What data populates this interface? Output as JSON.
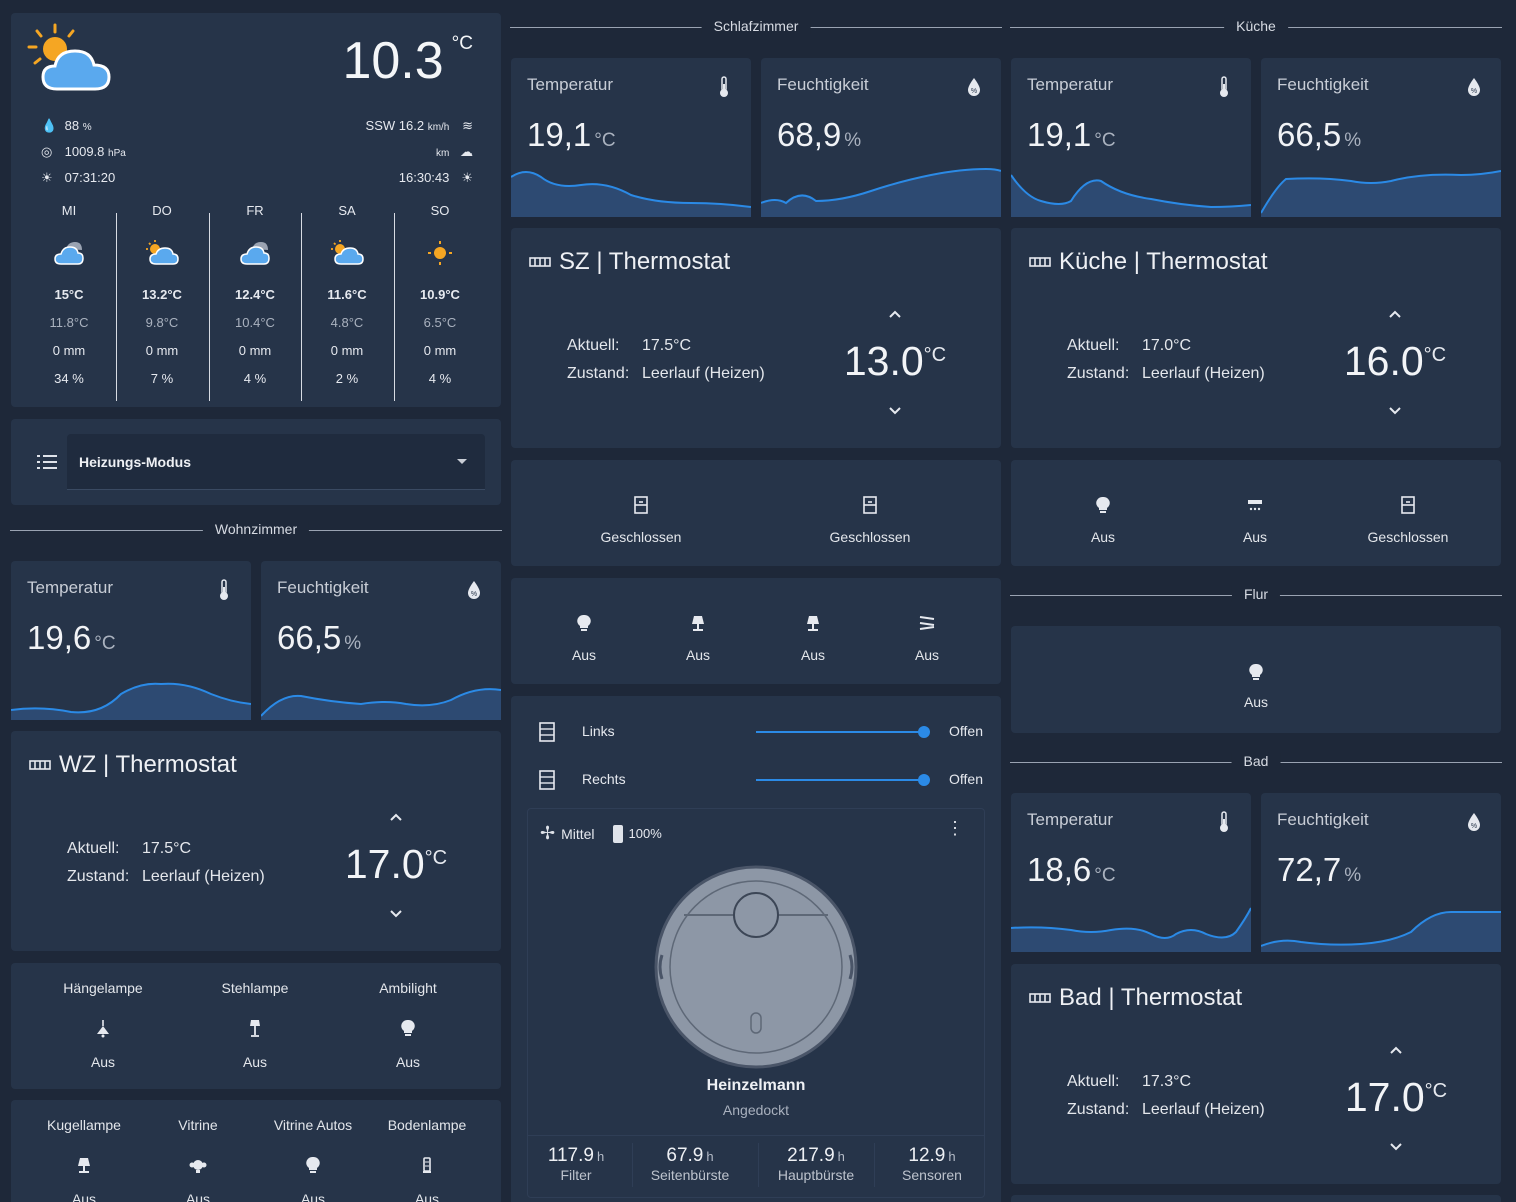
{
  "weather": {
    "temp": "10.3",
    "temp_unit": "°C",
    "humidity": "88",
    "humidity_unit": "%",
    "pressure": "1009.8",
    "pressure_unit": "hPa",
    "sunrise": "07:31:20",
    "wind": "SSW 16.2",
    "wind_unit": "km/h",
    "visibility_unit": "km",
    "sunset": "16:30:43",
    "forecast": [
      {
        "day": "MI",
        "high": "15°C",
        "low": "11.8°C",
        "precip": "0 mm",
        "chance": "34 %",
        "icon": "cloudy-icon"
      },
      {
        "day": "DO",
        "high": "13.2°C",
        "low": "9.8°C",
        "precip": "0 mm",
        "chance": "7 %",
        "icon": "partly-cloudy-icon"
      },
      {
        "day": "FR",
        "high": "12.4°C",
        "low": "10.4°C",
        "precip": "0 mm",
        "chance": "4 %",
        "icon": "cloudy-icon"
      },
      {
        "day": "SA",
        "high": "11.6°C",
        "low": "4.8°C",
        "precip": "0 mm",
        "chance": "2 %",
        "icon": "partly-cloudy-icon"
      },
      {
        "day": "SO",
        "high": "10.9°C",
        "low": "6.5°C",
        "precip": "0 mm",
        "chance": "4 %",
        "icon": "sunny-icon"
      }
    ]
  },
  "mode_select": {
    "label": "Heizungs-Modus"
  },
  "sections": {
    "wohnzimmer": "Wohnzimmer",
    "schlafzimmer": "Schlafzimmer",
    "kueche": "Küche",
    "flur": "Flur",
    "bad": "Bad"
  },
  "sensors": {
    "temp_label": "Temperatur",
    "hum_label": "Feuchtigkeit",
    "temp_unit": "°C",
    "hum_unit": "%",
    "wz_temp": "19,6",
    "wz_hum": "66,5",
    "sz_temp": "19,1",
    "sz_hum": "68,9",
    "ku_temp": "19,1",
    "ku_hum": "66,5",
    "bad_temp": "18,6",
    "bad_hum": "72,7"
  },
  "thermostats": {
    "aktuell_label": "Aktuell:",
    "zustand_label": "Zustand:",
    "unit": "°C",
    "wz": {
      "title": "WZ | Thermostat",
      "current": "17.5°C",
      "state": "Leerlauf (Heizen)",
      "target": "17.0"
    },
    "sz": {
      "title": "SZ | Thermostat",
      "current": "17.5°C",
      "state": "Leerlauf (Heizen)",
      "target": "13.0"
    },
    "ku": {
      "title": "Küche | Thermostat",
      "current": "17.0°C",
      "state": "Leerlauf (Heizen)",
      "target": "16.0"
    },
    "bad": {
      "title": "Bad | Thermostat",
      "current": "17.3°C",
      "state": "Leerlauf (Heizen)",
      "target": "17.0"
    }
  },
  "wz_lights_1": [
    {
      "name": "Hängelampe",
      "state": "Aus"
    },
    {
      "name": "Stehlampe",
      "state": "Aus"
    },
    {
      "name": "Ambilight",
      "state": "Aus"
    }
  ],
  "wz_lights_2": [
    {
      "name": "Kugellampe",
      "state": "Aus"
    },
    {
      "name": "Vitrine",
      "state": "Aus"
    },
    {
      "name": "Vitrine Autos",
      "state": "Aus"
    },
    {
      "name": "Bodenlampe",
      "state": "Aus"
    }
  ],
  "sz_windows": [
    {
      "state": "Geschlossen"
    },
    {
      "state": "Geschlossen"
    }
  ],
  "sz_lights": [
    {
      "state": "Aus"
    },
    {
      "state": "Aus"
    },
    {
      "state": "Aus"
    },
    {
      "state": "Aus"
    }
  ],
  "covers": [
    {
      "name": "Links",
      "state": "Offen",
      "position": 100
    },
    {
      "name": "Rechts",
      "state": "Offen",
      "position": 100
    }
  ],
  "vacuum": {
    "fan": "Mittel",
    "battery": "100%",
    "name": "Heinzelmann",
    "status": "Angedockt",
    "stats": [
      {
        "value": "117.9",
        "unit": "h",
        "label": "Filter"
      },
      {
        "value": "67.9",
        "unit": "h",
        "label": "Seitenbürste"
      },
      {
        "value": "217.9",
        "unit": "h",
        "label": "Hauptbürste"
      },
      {
        "value": "12.9",
        "unit": "h",
        "label": "Sensoren"
      }
    ]
  },
  "ku_entities": [
    {
      "state": "Aus"
    },
    {
      "state": "Aus"
    },
    {
      "state": "Geschlossen"
    }
  ],
  "flur_light": {
    "state": "Aus"
  },
  "colors": {
    "accent": "#2b8ae6",
    "card": "#263449",
    "bg": "#1e2839"
  }
}
